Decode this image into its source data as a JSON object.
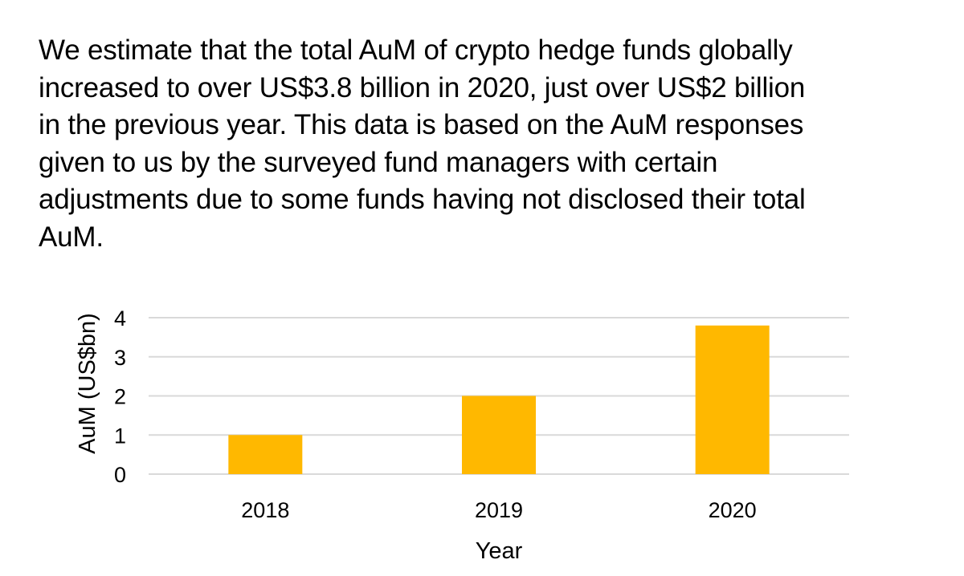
{
  "intro": {
    "lines": [
      "We estimate that the total AuM of crypto hedge funds globally",
      "increased to over US$3.8 billion in 2020, just over US$2 billion",
      "in the previous year. This data is based on the AuM responses",
      "given to us by the surveyed fund managers with certain",
      "adjustments due to some funds having not disclosed their total",
      "AuM."
    ]
  },
  "chart_data": {
    "type": "bar",
    "categories": [
      "2018",
      "2019",
      "2020"
    ],
    "values": [
      1.0,
      2.0,
      3.8
    ],
    "xlabel": "Year",
    "ylabel": "AuM (US$bn)",
    "ylim": [
      0,
      4
    ],
    "yticks": [
      "0",
      "1",
      "2",
      "3",
      "4"
    ],
    "grid": true,
    "legend": "none",
    "bar_color": "#FFB800",
    "grid_color": "#D9D9D9"
  }
}
